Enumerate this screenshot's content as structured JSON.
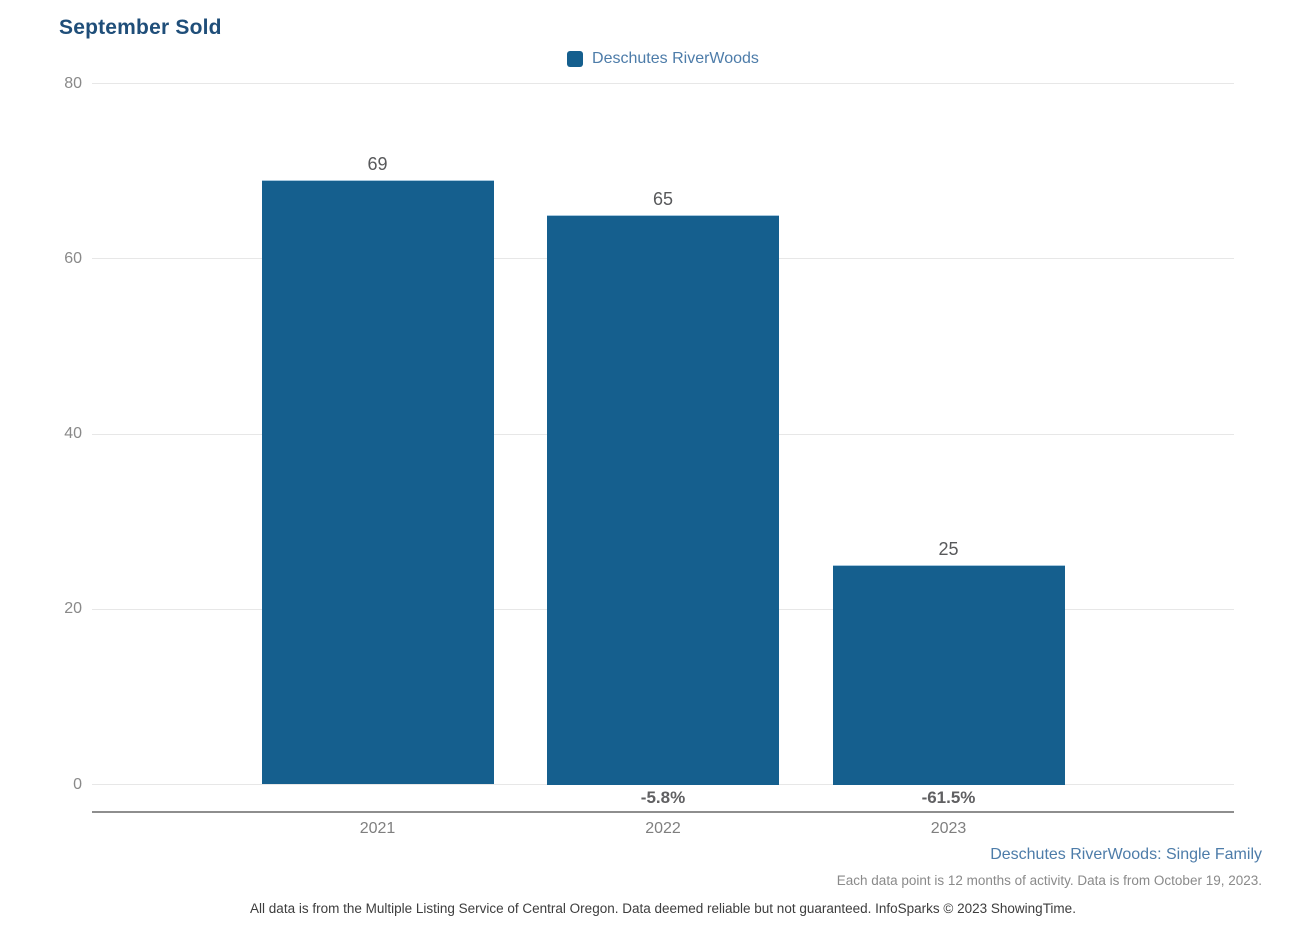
{
  "legend": {
    "label": "Deschutes RiverWoods",
    "swatch_color": "#155F8E"
  },
  "chart_data": {
    "type": "bar",
    "title": "September Sold",
    "categories": [
      "2021",
      "2022",
      "2023"
    ],
    "series": [
      {
        "name": "Deschutes RiverWoods",
        "values": [
          69,
          65,
          25
        ]
      }
    ],
    "value_labels": [
      "69",
      "65",
      "25"
    ],
    "change_labels": [
      "",
      "-5.8%",
      "-61.5%"
    ],
    "xlabel": "",
    "ylabel": "",
    "ylim": [
      0,
      80
    ],
    "yticks": [
      0,
      20,
      40,
      60,
      80
    ],
    "grid": true,
    "legend_position": "top-center",
    "bar_color": "#155F8E"
  },
  "footer": {
    "series_note": "Deschutes RiverWoods: Single Family",
    "data_note": "Each data point is 12 months of activity. Data is from October 19, 2023.",
    "disclaimer": "All data is from the Multiple Listing Service of Central Oregon. Data deemed reliable but not guaranteed. InfoSparks © 2023 ShowingTime."
  },
  "colors": {
    "title": "#1F4E79",
    "bar": "#155F8E",
    "legend_text": "#4D7CA9",
    "footer_blue": "#4D7CA9",
    "tick_gray": "#898989",
    "value_gray": "#58595B",
    "gridline": "#E7E7E7",
    "axis_line": "#8E8E8E"
  }
}
